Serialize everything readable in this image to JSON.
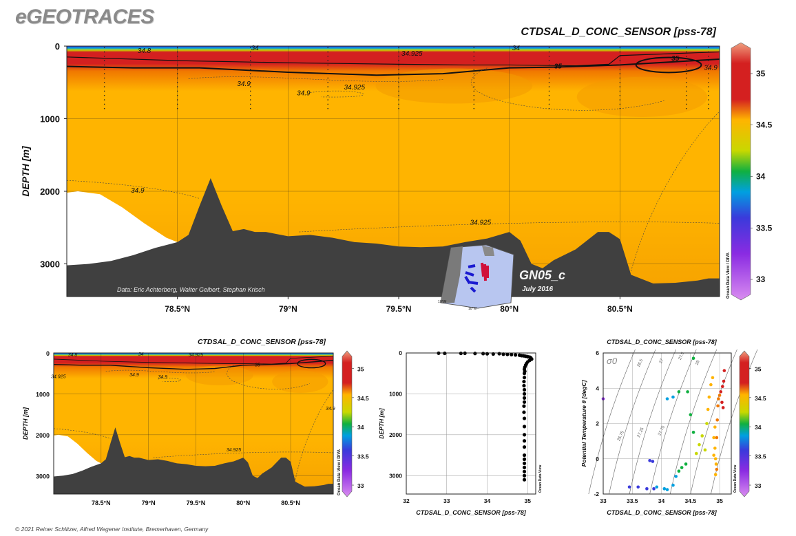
{
  "header": {
    "logo": "eGEOTRACES",
    "main_title": "CTDSAL_D_CONC_SENSOR [pss-78]",
    "footer": "© 2021 Reiner Schlitzer, Alfred Wegener Institute, Bremerhaven, Germany"
  },
  "colors": {
    "scale": [
      "#d98cf0",
      "#8a2be2",
      "#3a3adb",
      "#00a0e0",
      "#10b040",
      "#c8d800",
      "#ffb400",
      "#f07800",
      "#d42020",
      "#f0a080"
    ],
    "land": "#404040",
    "missing": "#ffffff"
  },
  "chart_data": [
    {
      "id": "main-section",
      "type": "heatmap",
      "title": "CTDSAL_D_CONC_SENSOR [pss-78]",
      "ylabel": "DEPTH [m]",
      "xlabel": "",
      "xlim": [
        78.0,
        80.95
      ],
      "ylim": [
        3450,
        0
      ],
      "xticks": [
        {
          "v": 78.5,
          "label": "78.5°N"
        },
        {
          "v": 79.0,
          "label": "79°N"
        },
        {
          "v": 79.5,
          "label": "79.5°N"
        },
        {
          "v": 80.0,
          "label": "80°N"
        },
        {
          "v": 80.5,
          "label": "80.5°N"
        }
      ],
      "yticks": [
        {
          "v": 0,
          "label": "0"
        },
        {
          "v": 1000,
          "label": "1000"
        },
        {
          "v": 2000,
          "label": "2000"
        },
        {
          "v": 3000,
          "label": "3000"
        }
      ],
      "colorbar": {
        "min": 32.8,
        "max": 35.3,
        "ticks": [
          "35",
          "34.5",
          "34",
          "33.5",
          "33"
        ],
        "tick_values": [
          35,
          34.5,
          34,
          33.5,
          33
        ],
        "side_label": "Ocean Data View / DIVA"
      },
      "bathymetry": [
        [
          78.0,
          3020
        ],
        [
          78.1,
          3000
        ],
        [
          78.2,
          2960
        ],
        [
          78.3,
          2880
        ],
        [
          78.4,
          2780
        ],
        [
          78.5,
          2700
        ],
        [
          78.55,
          2600
        ],
        [
          78.6,
          2200
        ],
        [
          78.65,
          1820
        ],
        [
          78.7,
          2200
        ],
        [
          78.75,
          2550
        ],
        [
          78.8,
          2520
        ],
        [
          78.85,
          2560
        ],
        [
          78.9,
          2560
        ],
        [
          79.0,
          2620
        ],
        [
          79.1,
          2600
        ],
        [
          79.2,
          2640
        ],
        [
          79.3,
          2700
        ],
        [
          79.4,
          2720
        ],
        [
          79.5,
          2760
        ],
        [
          79.6,
          2770
        ],
        [
          79.7,
          2760
        ],
        [
          79.8,
          2700
        ],
        [
          79.9,
          2650
        ],
        [
          80.0,
          2560
        ],
        [
          80.05,
          2680
        ],
        [
          80.1,
          3000
        ],
        [
          80.15,
          3060
        ],
        [
          80.2,
          2950
        ],
        [
          80.3,
          2800
        ],
        [
          80.4,
          2560
        ],
        [
          80.45,
          2560
        ],
        [
          80.5,
          2660
        ],
        [
          80.55,
          3150
        ],
        [
          80.65,
          3270
        ],
        [
          80.75,
          3260
        ],
        [
          80.85,
          3230
        ],
        [
          80.9,
          3200
        ],
        [
          80.95,
          3200
        ]
      ],
      "missing_region": [
        [
          78.0,
          2020
        ],
        [
          78.05,
          2000
        ],
        [
          78.15,
          2040
        ],
        [
          78.25,
          2220
        ],
        [
          78.35,
          2440
        ],
        [
          78.45,
          2640
        ],
        [
          78.5,
          2700
        ],
        [
          78.5,
          3420
        ],
        [
          78.0,
          3420
        ]
      ],
      "stations": [
        78.17,
        78.5,
        78.83,
        79.18,
        79.5,
        79.84,
        80.18,
        80.5,
        80.8,
        80.9
      ],
      "contours": [
        {
          "label": "34.8",
          "label_at": [
            78.35,
            55
          ]
        },
        {
          "label": "34",
          "label_at": [
            78.85,
            20
          ]
        },
        {
          "label": "34.925",
          "label_at": [
            79.56,
            95
          ]
        },
        {
          "label": "34",
          "label_at": [
            80.03,
            20
          ]
        },
        {
          "label": "35",
          "label_at": [
            80.22,
            270
          ]
        },
        {
          "label": "35",
          "label_at": [
            80.75,
            160
          ]
        },
        {
          "label": "34.9",
          "label_at": [
            80.91,
            290
          ]
        },
        {
          "label": "34.9",
          "label_at": [
            78.8,
            510
          ]
        },
        {
          "label": "34.925",
          "label_at": [
            79.3,
            560
          ]
        },
        {
          "label": "34.9",
          "label_at": [
            79.07,
            640
          ]
        },
        {
          "label": "34.9",
          "label_at": [
            78.32,
            1980
          ]
        },
        {
          "label": "34.925",
          "label_at": [
            79.87,
            2420
          ]
        }
      ],
      "credit": "Data: Eric Achterberg, Walter Geibert, Stephan Krisch",
      "cruise": "GN05_c",
      "cruise_date": "July 2016",
      "inset_map_labels": [
        "10°W",
        "10°W"
      ]
    },
    {
      "id": "small-section",
      "type": "heatmap",
      "title": "CTDSAL_D_CONC_SENSOR [pss-78]",
      "ylabel": "DEPTH [m]",
      "xticks": [
        "78.5°N",
        "79°N",
        "79.5°N",
        "80°N",
        "80.5°N"
      ],
      "yticks": [
        "0",
        "1000",
        "2000",
        "3000"
      ],
      "colorbar_ticks": [
        "35",
        "34.5",
        "34",
        "33.5",
        "33"
      ],
      "colorbar_side_label": "Ocean Data View / DIVA",
      "contour_labels": [
        "34.925",
        "34.9",
        "34.9",
        "34.925",
        "34.9",
        "34",
        "34.8",
        "34.925",
        "35"
      ]
    },
    {
      "id": "profile",
      "type": "scatter",
      "xlabel": "CTDSAL_D_CONC_SENSOR [pss-78]",
      "ylabel": "DEPTH [m]",
      "xlim": [
        32,
        35.2
      ],
      "ylim": [
        3450,
        0
      ],
      "xticks": [
        "32",
        "33",
        "34",
        "35"
      ],
      "yticks": [
        "0",
        "1000",
        "2000",
        "3000"
      ],
      "side_label": "Ocean Data View",
      "series": [
        {
          "points": [
            [
              32.8,
              5
            ],
            [
              32.95,
              8
            ],
            [
              33.35,
              10
            ],
            [
              33.45,
              6
            ],
            [
              33.7,
              12
            ],
            [
              33.9,
              15
            ],
            [
              34.0,
              20
            ],
            [
              34.15,
              25
            ],
            [
              34.3,
              18
            ],
            [
              34.4,
              30
            ],
            [
              34.5,
              35
            ],
            [
              34.6,
              40
            ],
            [
              34.7,
              48
            ],
            [
              34.8,
              55
            ],
            [
              34.85,
              65
            ],
            [
              34.9,
              70
            ],
            [
              34.95,
              80
            ],
            [
              35.0,
              90
            ],
            [
              35.05,
              100
            ],
            [
              35.08,
              120
            ],
            [
              35.1,
              150
            ],
            [
              35.05,
              180
            ],
            [
              35.0,
              220
            ],
            [
              34.97,
              260
            ],
            [
              34.95,
              300
            ],
            [
              34.93,
              350
            ],
            [
              34.92,
              400
            ],
            [
              34.93,
              450
            ],
            [
              34.92,
              500
            ],
            [
              34.92,
              600
            ],
            [
              34.91,
              700
            ],
            [
              34.91,
              800
            ],
            [
              34.92,
              900
            ],
            [
              34.92,
              1000
            ],
            [
              34.92,
              1100
            ],
            [
              34.92,
              1200
            ],
            [
              34.91,
              1300
            ],
            [
              34.91,
              1450
            ],
            [
              34.92,
              1600
            ],
            [
              34.92,
              1800
            ],
            [
              34.92,
              2000
            ],
            [
              34.92,
              2150
            ],
            [
              34.92,
              2300
            ],
            [
              34.92,
              2500
            ],
            [
              34.92,
              2600
            ],
            [
              34.92,
              2700
            ],
            [
              34.92,
              2800
            ],
            [
              34.92,
              2900
            ],
            [
              34.92,
              3000
            ],
            [
              34.92,
              3100
            ]
          ]
        }
      ]
    },
    {
      "id": "ts-diagram",
      "type": "scatter",
      "title": "CTDSAL_D_CONC_SENSOR [pss-78]",
      "xlabel": "CTDSAL_D_CONC_SENSOR [pss-78]",
      "ylabel": "Potential Temperature θ [degC]",
      "xlim": [
        33,
        35.2
      ],
      "ylim": [
        -2,
        6
      ],
      "xticks": [
        "33",
        "33.5",
        "34",
        "34.5",
        "35"
      ],
      "yticks": [
        "6",
        "4",
        "2",
        "0",
        "-2"
      ],
      "sigma_label": "σ0",
      "isopycnal_labels": [
        "26.5",
        "27",
        "27.5",
        "28",
        "26.75",
        "27.25",
        "27.75"
      ],
      "colorbar_ticks": [
        "35",
        "34.5",
        "34",
        "33.5",
        "33"
      ],
      "side_label": "Ocean Data View",
      "series": [
        {
          "points": [
            [
              33.0,
              3.4
            ],
            [
              33.45,
              -1.6
            ],
            [
              33.6,
              -1.6
            ],
            [
              33.75,
              -1.7
            ],
            [
              33.8,
              -0.1
            ],
            [
              33.85,
              -0.15
            ],
            [
              33.87,
              -1.7
            ],
            [
              33.92,
              -1.6
            ],
            [
              34.05,
              -1.7
            ],
            [
              34.1,
              -1.75
            ],
            [
              34.2,
              -1.5
            ],
            [
              34.25,
              -1.0
            ],
            [
              34.3,
              -0.7
            ],
            [
              34.35,
              -0.5
            ],
            [
              34.42,
              -0.3
            ],
            [
              34.1,
              3.4
            ],
            [
              34.2,
              3.5
            ],
            [
              34.3,
              3.8
            ],
            [
              34.55,
              5.7
            ],
            [
              34.45,
              3.8
            ],
            [
              34.5,
              2.5
            ],
            [
              34.55,
              1.5
            ],
            [
              34.6,
              0.3
            ],
            [
              34.65,
              0.8
            ],
            [
              34.7,
              1.3
            ],
            [
              34.75,
              0.5
            ],
            [
              34.78,
              2.0
            ],
            [
              34.8,
              2.8
            ],
            [
              34.82,
              3.5
            ],
            [
              34.85,
              4.2
            ],
            [
              34.88,
              4.6
            ],
            [
              34.9,
              1.2
            ],
            [
              34.92,
              0.6
            ],
            [
              34.93,
              0.0
            ],
            [
              34.94,
              -0.3
            ],
            [
              34.95,
              -0.6
            ],
            [
              34.96,
              2.2
            ],
            [
              34.97,
              3.0
            ],
            [
              34.98,
              3.4
            ],
            [
              35.0,
              3.6
            ],
            [
              35.02,
              3.8
            ],
            [
              35.04,
              3.2
            ],
            [
              35.05,
              4.1
            ],
            [
              35.06,
              2.9
            ],
            [
              35.07,
              4.4
            ],
            [
              35.08,
              5.0
            ],
            [
              34.93,
              -0.9
            ],
            [
              34.92,
              1.8
            ],
            [
              34.95,
              1.2
            ],
            [
              34.9,
              0.2
            ]
          ]
        }
      ]
    }
  ]
}
